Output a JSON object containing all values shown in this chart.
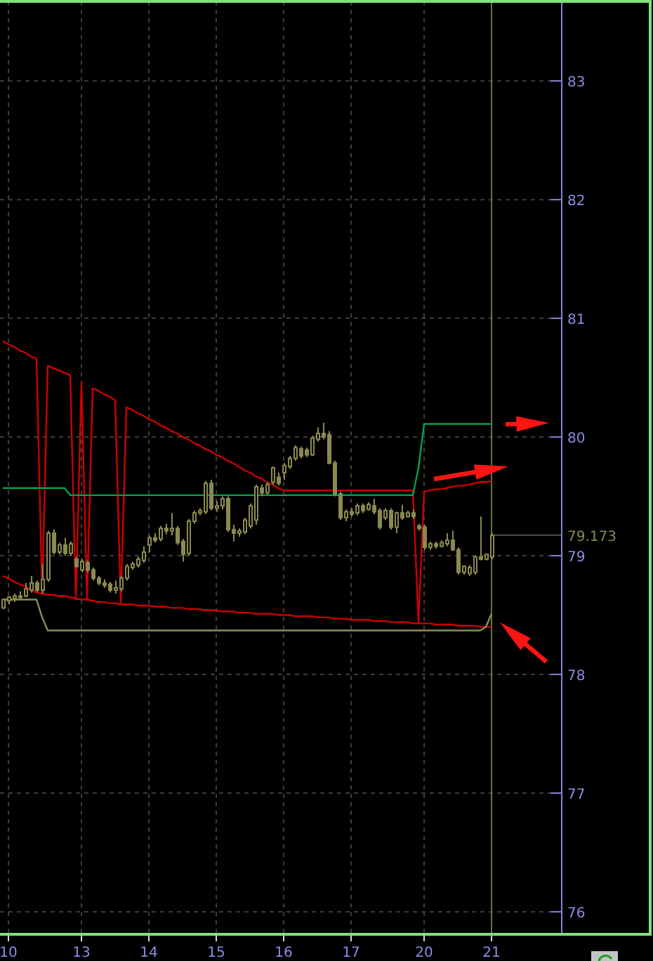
{
  "chart_data": {
    "type": "candlestick",
    "color": "#8a8a4e",
    "categories": [
      null,
      "10",
      null,
      null,
      null,
      null,
      null,
      null,
      null,
      null,
      null,
      null,
      null,
      null,
      "13",
      null,
      null,
      null,
      null,
      null,
      null,
      null,
      null,
      null,
      null,
      null,
      "14",
      null,
      null,
      null,
      null,
      null,
      null,
      null,
      null,
      null,
      null,
      null,
      "15",
      null,
      null,
      null,
      null,
      null,
      null,
      null,
      null,
      null,
      null,
      null,
      "16",
      null,
      null,
      null,
      null,
      null,
      null,
      null,
      null,
      null,
      null,
      null,
      "17",
      null,
      null,
      null,
      null,
      null,
      null,
      null,
      null,
      null,
      null,
      null,
      null,
      "20",
      null,
      null,
      null,
      null,
      null,
      null,
      null,
      null,
      null,
      null,
      null,
      "21"
    ],
    "ohlc": [
      [
        78.56,
        78.64,
        78.55,
        78.63
      ],
      [
        78.62,
        78.66,
        78.59,
        78.65
      ],
      [
        78.64,
        78.68,
        78.61,
        78.66
      ],
      [
        78.66,
        78.7,
        78.63,
        78.65
      ],
      [
        78.66,
        78.77,
        78.65,
        78.72
      ],
      [
        78.71,
        78.83,
        78.69,
        78.77
      ],
      [
        78.77,
        78.79,
        78.69,
        78.71
      ],
      [
        78.71,
        78.93,
        78.68,
        78.8
      ],
      [
        78.8,
        79.21,
        78.78,
        79.19
      ],
      [
        79.19,
        79.22,
        79.01,
        79.03
      ],
      [
        79.03,
        79.11,
        79.01,
        79.09
      ],
      [
        79.09,
        79.15,
        79.0,
        79.02
      ],
      [
        79.02,
        79.12,
        79.0,
        79.1
      ],
      [
        78.97,
        78.99,
        78.9,
        78.91
      ],
      [
        78.88,
        78.97,
        78.86,
        78.95
      ],
      [
        78.94,
        78.96,
        78.86,
        78.88
      ],
      [
        78.88,
        78.9,
        78.79,
        78.81
      ],
      [
        78.81,
        78.83,
        78.75,
        78.77
      ],
      [
        78.77,
        78.8,
        78.73,
        78.75
      ],
      [
        78.76,
        78.78,
        78.69,
        78.71
      ],
      [
        78.71,
        78.79,
        78.68,
        78.73
      ],
      [
        78.72,
        78.83,
        78.7,
        78.81
      ],
      [
        78.81,
        78.93,
        78.79,
        78.91
      ],
      [
        78.9,
        78.95,
        78.88,
        78.93
      ],
      [
        78.92,
        78.99,
        78.9,
        78.97
      ],
      [
        78.96,
        79.08,
        78.94,
        79.03
      ],
      [
        79.09,
        79.17,
        79.03,
        79.15
      ],
      [
        79.15,
        79.19,
        79.11,
        79.13
      ],
      [
        79.14,
        79.25,
        79.12,
        79.23
      ],
      [
        79.23,
        79.27,
        79.18,
        79.21
      ],
      [
        79.21,
        79.36,
        79.17,
        79.23
      ],
      [
        79.23,
        79.25,
        79.09,
        79.11
      ],
      [
        79.12,
        79.14,
        78.95,
        79.01
      ],
      [
        79.02,
        79.31,
        79.0,
        79.29
      ],
      [
        79.29,
        79.38,
        79.27,
        79.36
      ],
      [
        79.36,
        79.4,
        79.34,
        79.38
      ],
      [
        79.37,
        79.63,
        79.35,
        79.61
      ],
      [
        79.61,
        79.64,
        79.38,
        79.4
      ],
      [
        79.4,
        79.46,
        79.37,
        79.42
      ],
      [
        79.42,
        79.5,
        79.39,
        79.48
      ],
      [
        79.48,
        79.5,
        79.2,
        79.22
      ],
      [
        79.22,
        79.26,
        79.12,
        79.19
      ],
      [
        79.19,
        79.23,
        79.16,
        79.21
      ],
      [
        79.2,
        79.32,
        79.18,
        79.3
      ],
      [
        79.25,
        79.44,
        79.23,
        79.42
      ],
      [
        79.3,
        79.6,
        79.26,
        79.58
      ],
      [
        79.57,
        79.6,
        79.5,
        79.53
      ],
      [
        79.53,
        79.62,
        79.51,
        79.6
      ],
      [
        79.62,
        79.75,
        79.6,
        79.74
      ],
      [
        79.66,
        79.7,
        79.59,
        79.61
      ],
      [
        79.7,
        79.78,
        79.64,
        79.76
      ],
      [
        79.75,
        79.84,
        79.73,
        79.82
      ],
      [
        79.82,
        79.93,
        79.8,
        79.91
      ],
      [
        79.9,
        79.92,
        79.82,
        79.84
      ],
      [
        79.89,
        79.91,
        79.83,
        79.85
      ],
      [
        79.85,
        80.01,
        79.84,
        79.99
      ],
      [
        79.98,
        80.08,
        79.96,
        80.03
      ],
      [
        80.03,
        80.12,
        79.98,
        80.0
      ],
      [
        80.02,
        80.05,
        79.77,
        79.78
      ],
      [
        79.78,
        79.8,
        79.5,
        79.52
      ],
      [
        79.52,
        79.54,
        79.3,
        79.32
      ],
      [
        79.32,
        79.39,
        79.29,
        79.37
      ],
      [
        79.37,
        79.4,
        79.33,
        79.35
      ],
      [
        79.36,
        79.44,
        79.34,
        79.42
      ],
      [
        79.42,
        79.44,
        79.36,
        79.38
      ],
      [
        79.39,
        79.45,
        79.38,
        79.43
      ],
      [
        79.42,
        79.48,
        79.35,
        79.37
      ],
      [
        79.38,
        79.4,
        79.22,
        79.24
      ],
      [
        79.32,
        79.4,
        79.3,
        79.38
      ],
      [
        79.38,
        79.4,
        79.22,
        79.24
      ],
      [
        79.24,
        79.37,
        79.19,
        79.36
      ],
      [
        79.36,
        79.43,
        79.3,
        79.32
      ],
      [
        79.33,
        79.38,
        79.32,
        79.36
      ],
      [
        79.36,
        79.39,
        79.31,
        79.33
      ],
      [
        79.25,
        79.27,
        79.21,
        79.23
      ],
      [
        79.24,
        79.26,
        79.05,
        79.07
      ],
      [
        79.07,
        79.12,
        79.05,
        79.1
      ],
      [
        79.1,
        79.12,
        79.06,
        79.08
      ],
      [
        79.08,
        79.13,
        79.07,
        79.11
      ],
      [
        79.1,
        79.19,
        79.08,
        79.13
      ],
      [
        79.13,
        79.21,
        79.04,
        79.05
      ],
      [
        79.05,
        79.07,
        78.84,
        78.86
      ],
      [
        78.86,
        78.92,
        78.84,
        78.91
      ],
      [
        78.85,
        78.92,
        78.83,
        78.9
      ],
      [
        78.86,
        79.0,
        78.84,
        78.99
      ],
      [
        78.99,
        79.33,
        78.96,
        78.97
      ],
      [
        78.97,
        79.02,
        78.96,
        79.01
      ],
      [
        78.99,
        79.19,
        78.97,
        79.17
      ]
    ],
    "series": [
      {
        "type": "line",
        "color": "#cc0000",
        "values": [
          80.81,
          80.78,
          80.76,
          80.73,
          80.71,
          80.68,
          80.66,
          78.68,
          80.6,
          80.58,
          80.56,
          80.54,
          80.52,
          78.63,
          80.46,
          78.63,
          80.41,
          80.39,
          80.36,
          80.34,
          80.31,
          78.6,
          80.25,
          80.23,
          80.2,
          80.18,
          80.15,
          80.13,
          80.1,
          80.08,
          80.05,
          80.03,
          80.0,
          79.98,
          79.95,
          79.93,
          79.9,
          79.88,
          79.85,
          79.83,
          79.8,
          79.78,
          79.75,
          79.72,
          79.7,
          79.67,
          79.65,
          79.62,
          79.6,
          79.57,
          79.55,
          79.55,
          79.55,
          79.55,
          79.55,
          79.55,
          79.55,
          79.55,
          79.55,
          79.55,
          79.55,
          79.55,
          79.55,
          79.55,
          79.55,
          79.55,
          79.55,
          79.55,
          79.55,
          79.55,
          79.55,
          79.55,
          79.55,
          79.55,
          78.44,
          79.54,
          79.55,
          79.56,
          79.56,
          79.57,
          79.58,
          79.59,
          79.59,
          79.6,
          79.61,
          79.62,
          79.62,
          79.63
        ]
      },
      {
        "type": "line",
        "color": "#cc0000",
        "values": [
          78.83,
          78.81,
          78.78,
          78.76,
          78.74,
          78.71,
          78.69,
          78.68,
          78.67,
          78.67,
          78.66,
          78.66,
          78.65,
          78.64,
          78.63,
          78.63,
          78.62,
          78.61,
          78.61,
          78.6,
          78.6,
          78.59,
          78.59,
          78.59,
          78.58,
          78.58,
          78.58,
          78.57,
          78.57,
          78.57,
          78.56,
          78.56,
          78.56,
          78.55,
          78.55,
          78.55,
          78.54,
          78.54,
          78.54,
          78.53,
          78.53,
          78.53,
          78.52,
          78.52,
          78.52,
          78.51,
          78.51,
          78.51,
          78.51,
          78.5,
          78.5,
          78.5,
          78.49,
          78.49,
          78.49,
          78.49,
          78.48,
          78.48,
          78.48,
          78.47,
          78.47,
          78.47,
          78.46,
          78.46,
          78.46,
          78.46,
          78.45,
          78.45,
          78.45,
          78.44,
          78.44,
          78.44,
          78.44,
          78.43,
          78.43,
          78.43,
          78.43,
          78.42,
          78.42,
          78.42,
          78.42,
          78.41,
          78.41,
          78.41,
          78.41,
          78.4,
          78.4,
          78.4
        ]
      },
      {
        "type": "line",
        "color": "#00a050",
        "values": [
          79.57,
          79.57,
          79.57,
          79.57,
          79.57,
          79.57,
          79.57,
          79.57,
          79.57,
          79.57,
          79.57,
          79.57,
          79.51,
          79.51,
          79.51,
          79.51,
          79.51,
          79.51,
          79.51,
          79.51,
          79.51,
          79.51,
          79.51,
          79.51,
          79.51,
          79.51,
          79.51,
          79.51,
          79.51,
          79.51,
          79.51,
          79.51,
          79.51,
          79.51,
          79.51,
          79.51,
          79.51,
          79.51,
          79.51,
          79.51,
          79.51,
          79.51,
          79.51,
          79.51,
          79.51,
          79.51,
          79.51,
          79.51,
          79.51,
          79.51,
          79.51,
          79.51,
          79.51,
          79.51,
          79.51,
          79.51,
          79.51,
          79.51,
          79.51,
          79.51,
          79.51,
          79.51,
          79.51,
          79.51,
          79.51,
          79.51,
          79.51,
          79.51,
          79.51,
          79.51,
          79.51,
          79.51,
          79.51,
          79.51,
          79.74,
          80.11,
          80.11,
          80.11,
          80.11,
          80.11,
          80.11,
          80.11,
          80.11,
          80.11,
          80.11,
          80.11,
          80.11,
          80.11
        ]
      },
      {
        "type": "line",
        "color": "#8c8c5c",
        "values": [
          78.63,
          78.63,
          78.63,
          78.63,
          78.63,
          78.63,
          78.63,
          78.48,
          78.37,
          78.37,
          78.37,
          78.37,
          78.37,
          78.37,
          78.37,
          78.37,
          78.37,
          78.37,
          78.37,
          78.37,
          78.37,
          78.37,
          78.37,
          78.37,
          78.37,
          78.37,
          78.37,
          78.37,
          78.37,
          78.37,
          78.37,
          78.37,
          78.37,
          78.37,
          78.37,
          78.37,
          78.37,
          78.37,
          78.37,
          78.37,
          78.37,
          78.37,
          78.37,
          78.37,
          78.37,
          78.37,
          78.37,
          78.37,
          78.37,
          78.37,
          78.37,
          78.37,
          78.37,
          78.37,
          78.37,
          78.37,
          78.37,
          78.37,
          78.37,
          78.37,
          78.37,
          78.37,
          78.37,
          78.37,
          78.37,
          78.37,
          78.37,
          78.37,
          78.37,
          78.37,
          78.37,
          78.37,
          78.37,
          78.37,
          78.37,
          78.37,
          78.37,
          78.37,
          78.37,
          78.37,
          78.37,
          78.37,
          78.37,
          78.37,
          78.37,
          78.37,
          78.4,
          78.51
        ]
      }
    ],
    "ylim": [
      75.81,
      83.67
    ],
    "yticks": [
      76,
      77,
      78,
      79,
      80,
      81,
      82,
      83
    ],
    "grid": true,
    "ref_lines": [
      {
        "axis": "x",
        "value": "21",
        "color": "#6e6e44"
      },
      {
        "axis": "y",
        "value": 79.173,
        "label": "79.173",
        "color": "#505050"
      }
    ]
  }
}
